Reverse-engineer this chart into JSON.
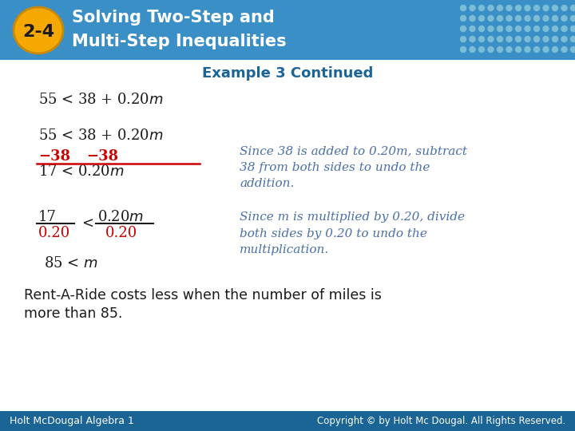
{
  "title_badge": "2-4",
  "title_line1": "Solving Two-Step and",
  "title_line2": "Multi-Step Inequalities",
  "subtitle": "Example 3 Continued",
  "header_bg": "#3a8fc7",
  "badge_color": "#f5a800",
  "badge_text_color": "#1a1a1a",
  "title_text_color": "#ffffff",
  "subtitle_color": "#1a6496",
  "body_bg": "#ffffff",
  "dark_red": "#cc0000",
  "italic_blue": "#4a6fa8",
  "black": "#1a1a1a",
  "footer_bg": "#1a6496",
  "footer_text_left": "Holt McDougal Algebra 1",
  "footer_text_right": "Copyright © by Holt Mc Dougal. All Rights Reserved.",
  "footer_text_color": "#ffffff",
  "grid_color": "#7bbdd4",
  "note1": "Since 38 is added to 0.20m, subtract\n38 from both sides to undo the\naddition.",
  "note2": "Since m is multiplied by 0.20, divide\nboth sides by 0.20 to undo the\nmultiplication."
}
